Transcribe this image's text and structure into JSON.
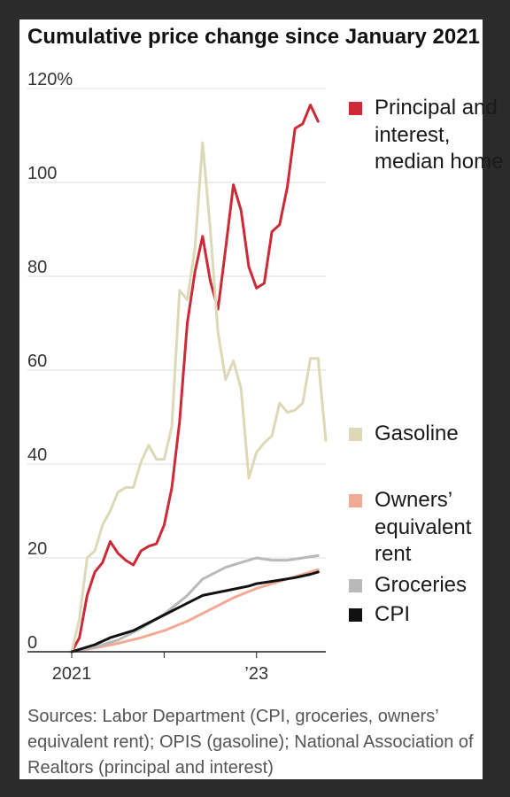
{
  "chart_data": {
    "type": "line",
    "title": "Cumulative price change since January 2021",
    "x_start": "2021-01",
    "x_end": "2023-10",
    "x_tick_labels": [
      {
        "date": "2021-01",
        "label": "2021"
      },
      {
        "date": "2023-01",
        "label": "’23"
      }
    ],
    "y_ticks": [
      {
        "value": 0,
        "label": "0"
      },
      {
        "value": 20,
        "label": "20"
      },
      {
        "value": 40,
        "label": "40"
      },
      {
        "value": 60,
        "label": "60"
      },
      {
        "value": 80,
        "label": "80"
      },
      {
        "value": 100,
        "label": "100"
      },
      {
        "value": 120,
        "label": "120%"
      }
    ],
    "ylim": [
      0,
      120
    ],
    "grid": "horizontal",
    "legend_position": "right",
    "series": [
      {
        "name": "Principal and interest, median home",
        "color": "#cc2a36",
        "points": [
          [
            "2021-01",
            0
          ],
          [
            "2021-02",
            3
          ],
          [
            "2021-03",
            12
          ],
          [
            "2021-04",
            17
          ],
          [
            "2021-05",
            19
          ],
          [
            "2021-06",
            23.5
          ],
          [
            "2021-07",
            21
          ],
          [
            "2021-08",
            19.5
          ],
          [
            "2021-09",
            18.5
          ],
          [
            "2021-10",
            21.5
          ],
          [
            "2021-11",
            22.5
          ],
          [
            "2021-12",
            23
          ],
          [
            "2022-01",
            27
          ],
          [
            "2022-02",
            35
          ],
          [
            "2022-03",
            49
          ],
          [
            "2022-04",
            70
          ],
          [
            "2022-05",
            81
          ],
          [
            "2022-06",
            88.5
          ],
          [
            "2022-07",
            79
          ],
          [
            "2022-08",
            73
          ],
          [
            "2022-09",
            86
          ],
          [
            "2022-10",
            99.5
          ],
          [
            "2022-11",
            94
          ],
          [
            "2022-12",
            82
          ],
          [
            "2023-01",
            77.5
          ],
          [
            "2023-02",
            78.5
          ],
          [
            "2023-03",
            89.5
          ],
          [
            "2023-04",
            91
          ],
          [
            "2023-05",
            99
          ],
          [
            "2023-06",
            111.5
          ],
          [
            "2023-07",
            112.5
          ],
          [
            "2023-08",
            116.5
          ],
          [
            "2023-09",
            113
          ]
        ]
      },
      {
        "name": "Gasoline",
        "color": "#ddd9b7",
        "points": [
          [
            "2021-01",
            0
          ],
          [
            "2021-02",
            7
          ],
          [
            "2021-03",
            20
          ],
          [
            "2021-04",
            21.5
          ],
          [
            "2021-05",
            27
          ],
          [
            "2021-06",
            30
          ],
          [
            "2021-07",
            34
          ],
          [
            "2021-08",
            35
          ],
          [
            "2021-09",
            35
          ],
          [
            "2021-10",
            40.5
          ],
          [
            "2021-11",
            44
          ],
          [
            "2021-12",
            41
          ],
          [
            "2022-01",
            41
          ],
          [
            "2022-02",
            48
          ],
          [
            "2022-03",
            77
          ],
          [
            "2022-04",
            75
          ],
          [
            "2022-05",
            86
          ],
          [
            "2022-06",
            108.5
          ],
          [
            "2022-07",
            90
          ],
          [
            "2022-08",
            68
          ],
          [
            "2022-09",
            58
          ],
          [
            "2022-10",
            62
          ],
          [
            "2022-11",
            56
          ],
          [
            "2022-12",
            37
          ],
          [
            "2023-01",
            42.5
          ],
          [
            "2023-02",
            44.5
          ],
          [
            "2023-03",
            46
          ],
          [
            "2023-04",
            53
          ],
          [
            "2023-05",
            51
          ],
          [
            "2023-06",
            51.5
          ],
          [
            "2023-07",
            53
          ],
          [
            "2023-08",
            62.5
          ],
          [
            "2023-09",
            62.5
          ],
          [
            "2023-10",
            45
          ]
        ]
      },
      {
        "name": "Owners’ equivalent rent",
        "color": "#f2aa95",
        "points": [
          [
            "2021-01",
            0
          ],
          [
            "2021-04",
            0.8
          ],
          [
            "2021-07",
            1.8
          ],
          [
            "2021-10",
            3
          ],
          [
            "2022-01",
            4.5
          ],
          [
            "2022-04",
            6.5
          ],
          [
            "2022-07",
            9
          ],
          [
            "2022-10",
            11.5
          ],
          [
            "2023-01",
            13.5
          ],
          [
            "2023-04",
            15
          ],
          [
            "2023-07",
            16.5
          ],
          [
            "2023-09",
            17.5
          ]
        ]
      },
      {
        "name": "Groceries",
        "color": "#b9b9b9",
        "points": [
          [
            "2021-01",
            0
          ],
          [
            "2021-04",
            1
          ],
          [
            "2021-07",
            2.5
          ],
          [
            "2021-10",
            5
          ],
          [
            "2022-01",
            8
          ],
          [
            "2022-04",
            12
          ],
          [
            "2022-06",
            15.5
          ],
          [
            "2022-09",
            18
          ],
          [
            "2022-12",
            19.5
          ],
          [
            "2023-01",
            20
          ],
          [
            "2023-03",
            19.5
          ],
          [
            "2023-05",
            19.5
          ],
          [
            "2023-07",
            20
          ],
          [
            "2023-09",
            20.5
          ]
        ]
      },
      {
        "name": "CPI",
        "color": "#111111",
        "points": [
          [
            "2021-01",
            0
          ],
          [
            "2021-04",
            1.5
          ],
          [
            "2021-06",
            3
          ],
          [
            "2021-09",
            4.5
          ],
          [
            "2021-12",
            7
          ],
          [
            "2022-03",
            9.5
          ],
          [
            "2022-06",
            12
          ],
          [
            "2022-09",
            13
          ],
          [
            "2022-12",
            14
          ],
          [
            "2023-01",
            14.5
          ],
          [
            "2023-03",
            15
          ],
          [
            "2023-06",
            15.8
          ],
          [
            "2023-08",
            16.5
          ],
          [
            "2023-09",
            17
          ]
        ]
      }
    ]
  },
  "legend": [
    {
      "label": "Principal and interest, median home",
      "color": "#cc2a36"
    },
    {
      "label": "Gasoline",
      "color": "#ddd9b7"
    },
    {
      "label": "Owners’ equivalent rent",
      "color": "#f2aa95"
    },
    {
      "label": "Groceries",
      "color": "#b9b9b9"
    },
    {
      "label": "CPI",
      "color": "#111111"
    }
  ],
  "source_note": "Sources: Labor Department (CPI, groceries, owners’ equivalent rent); OPIS (gasoline); National Association of Realtors (principal and interest)"
}
